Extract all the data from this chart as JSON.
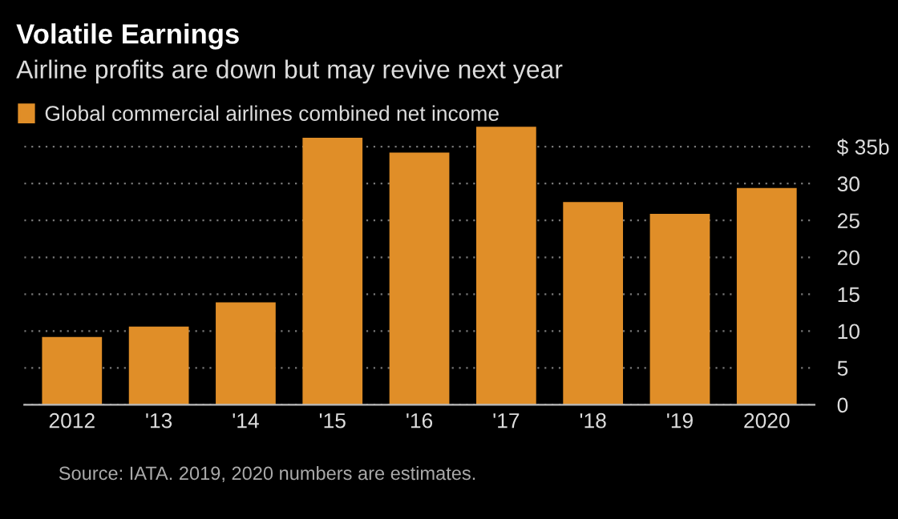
{
  "chart_data": {
    "type": "bar",
    "title": "Volatile Earnings",
    "subtitle": "Airline profits are down but may revive next year",
    "categories": [
      "2012",
      "'13",
      "'14",
      "'15",
      "'16",
      "'17",
      "'18",
      "'19",
      "2020"
    ],
    "series": [
      {
        "name": "Global commercial airlines combined net income",
        "color": "#e08e28",
        "values": [
          9.2,
          10.6,
          13.9,
          36.2,
          34.2,
          37.7,
          27.5,
          25.9,
          29.4
        ]
      }
    ],
    "ylim": [
      0,
      38
    ],
    "yticks": [
      0,
      5,
      10,
      15,
      20,
      25,
      30,
      {
        "value": 35,
        "label": "$ 35b"
      }
    ],
    "grid": "y",
    "legend": "top left",
    "annotations": [
      "Source: IATA. 2019, 2020 numbers are estimates."
    ]
  }
}
